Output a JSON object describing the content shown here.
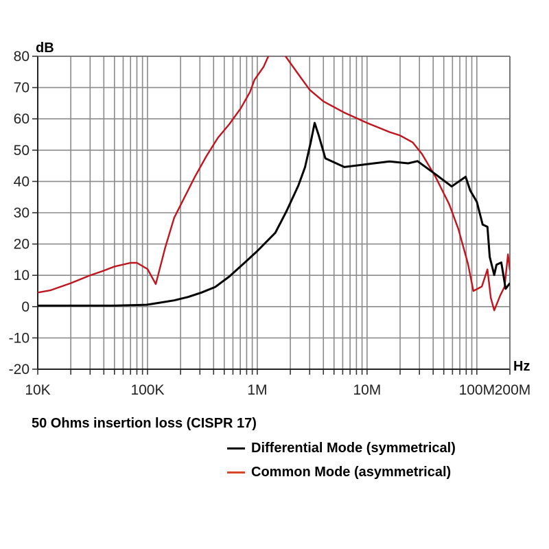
{
  "chart_data": {
    "type": "line",
    "title": "50 Ohms insertion loss (CISPR 17)",
    "xlabel": "Hz",
    "ylabel": "dB",
    "xscale": "log",
    "xlim": [
      10000,
      200000000
    ],
    "ylim": [
      -20,
      80
    ],
    "grid": true,
    "legend_placement": "bottom-right",
    "x_ticks": [
      {
        "value": 10000,
        "label": "10K"
      },
      {
        "value": 100000,
        "label": "100K"
      },
      {
        "value": 1000000,
        "label": "1M"
      },
      {
        "value": 10000000,
        "label": "10M"
      },
      {
        "value": 100000000,
        "label": "100M"
      },
      {
        "value": 200000000,
        "label": "200M"
      }
    ],
    "y_ticks": [
      80,
      70,
      60,
      50,
      40,
      30,
      20,
      10,
      0,
      -10,
      -20
    ],
    "series": [
      {
        "name": "Differential Mode (symmetrical)",
        "color": "#000000",
        "points": [
          [
            10000,
            0.3
          ],
          [
            50000,
            0.3
          ],
          [
            98000,
            0.6
          ],
          [
            132000,
            1.3
          ],
          [
            175000,
            2.0
          ],
          [
            235000,
            3.1
          ],
          [
            310000,
            4.5
          ],
          [
            415000,
            6.3
          ],
          [
            556000,
            9.6
          ],
          [
            743000,
            13.6
          ],
          [
            990000,
            17.6
          ],
          [
            1460000,
            23.6
          ],
          [
            1850000,
            30.6
          ],
          [
            2360000,
            38.6
          ],
          [
            2720000,
            44.5
          ],
          [
            3070000,
            52.5
          ],
          [
            3330000,
            58.7
          ],
          [
            3630000,
            54.7
          ],
          [
            4170000,
            47.4
          ],
          [
            6200000,
            44.6
          ],
          [
            10000000,
            45.5
          ],
          [
            16000000,
            46.4
          ],
          [
            23700000,
            45.8
          ],
          [
            28800000,
            46.5
          ],
          [
            42000000,
            42.3
          ],
          [
            59000000,
            38.4
          ],
          [
            79000000,
            41.5
          ],
          [
            87000000,
            37.1
          ],
          [
            100000000,
            33.5
          ],
          [
            113000000,
            26.2
          ],
          [
            125000000,
            25.5
          ],
          [
            131000000,
            15.9
          ],
          [
            144000000,
            10.1
          ],
          [
            151000000,
            13.4
          ],
          [
            167000000,
            14.1
          ],
          [
            183000000,
            5.7
          ],
          [
            200000000,
            7.5
          ]
        ]
      },
      {
        "name": "Common Mode (asymmetrical)",
        "color": "#c0141e",
        "legend_color": "#d9452b",
        "points": [
          [
            10000,
            4.5
          ],
          [
            13000,
            5.2
          ],
          [
            20000,
            7.5
          ],
          [
            30000,
            10
          ],
          [
            40000,
            11.5
          ],
          [
            50000,
            12.8
          ],
          [
            70000,
            14
          ],
          [
            80000,
            14
          ],
          [
            100000,
            12
          ],
          [
            119000,
            7.2
          ],
          [
            145000,
            18.9
          ],
          [
            175000,
            28.4
          ],
          [
            212000,
            34.2
          ],
          [
            270000,
            41.5
          ],
          [
            344000,
            48.1
          ],
          [
            437000,
            53.9
          ],
          [
            556000,
            58.3
          ],
          [
            708000,
            63.4
          ],
          [
            858000,
            68.6
          ],
          [
            944000,
            72.5
          ],
          [
            1140000,
            76.6
          ],
          [
            1260000,
            80
          ],
          [
            1500000,
            82
          ],
          [
            1810000,
            80
          ],
          [
            2350000,
            74.4
          ],
          [
            3000000,
            69.3
          ],
          [
            4000000,
            65.6
          ],
          [
            6200000,
            62
          ],
          [
            10000000,
            58.7
          ],
          [
            16000000,
            55.8
          ],
          [
            20000000,
            54.7
          ],
          [
            26000000,
            52.5
          ],
          [
            31600000,
            48.8
          ],
          [
            42000000,
            41.5
          ],
          [
            56000000,
            32.7
          ],
          [
            68000000,
            24.7
          ],
          [
            83000000,
            13.7
          ],
          [
            93000000,
            5.0
          ],
          [
            111000000,
            6.4
          ],
          [
            125000000,
            11.9
          ],
          [
            134000000,
            2.8
          ],
          [
            144000000,
            -1.2
          ],
          [
            163000000,
            3.5
          ],
          [
            179000000,
            6.4
          ],
          [
            192000000,
            16.7
          ],
          [
            200000000,
            11.6
          ]
        ]
      }
    ]
  }
}
